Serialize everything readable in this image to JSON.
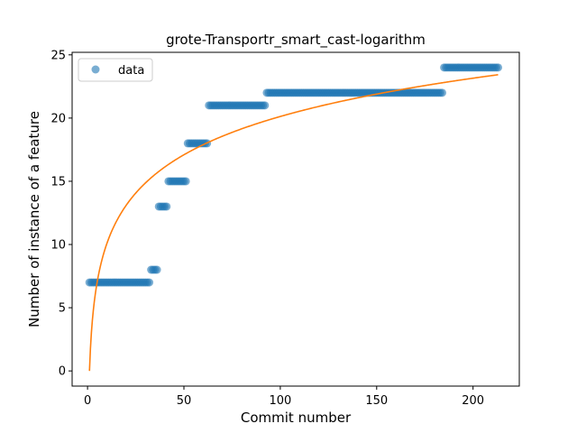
{
  "chart_data": {
    "type": "scatter",
    "title": "grote-Transportr_smart_cast-logarithm",
    "xlabel": "Commit number",
    "ylabel": "Number of instance of a feature",
    "xlim": [
      -8,
      224
    ],
    "ylim": [
      -1.2,
      25.2
    ],
    "xticks": [
      0,
      50,
      100,
      150,
      200
    ],
    "yticks": [
      0,
      5,
      10,
      15,
      20,
      25
    ],
    "grid": false,
    "legend": {
      "position": "top-left",
      "entries": [
        "data"
      ]
    },
    "colors": {
      "data": "#1f77b4",
      "fit": "#ff7f0e"
    },
    "series": [
      {
        "name": "data",
        "kind": "points",
        "segments": [
          {
            "x_start": 1,
            "x_end": 32,
            "y": 7
          },
          {
            "x_start": 33,
            "x_end": 36,
            "y": 8
          },
          {
            "x_start": 37,
            "x_end": 41,
            "y": 13
          },
          {
            "x_start": 42,
            "x_end": 51,
            "y": 15
          },
          {
            "x_start": 52,
            "x_end": 62,
            "y": 18
          },
          {
            "x_start": 63,
            "x_end": 92,
            "y": 21
          },
          {
            "x_start": 93,
            "x_end": 184,
            "y": 22
          },
          {
            "x_start": 185,
            "x_end": 213,
            "y": 24
          }
        ]
      },
      {
        "kind": "logarithmic fit",
        "a": 4.37,
        "b": 0,
        "x_start": 1,
        "x_end": 213
      }
    ]
  }
}
